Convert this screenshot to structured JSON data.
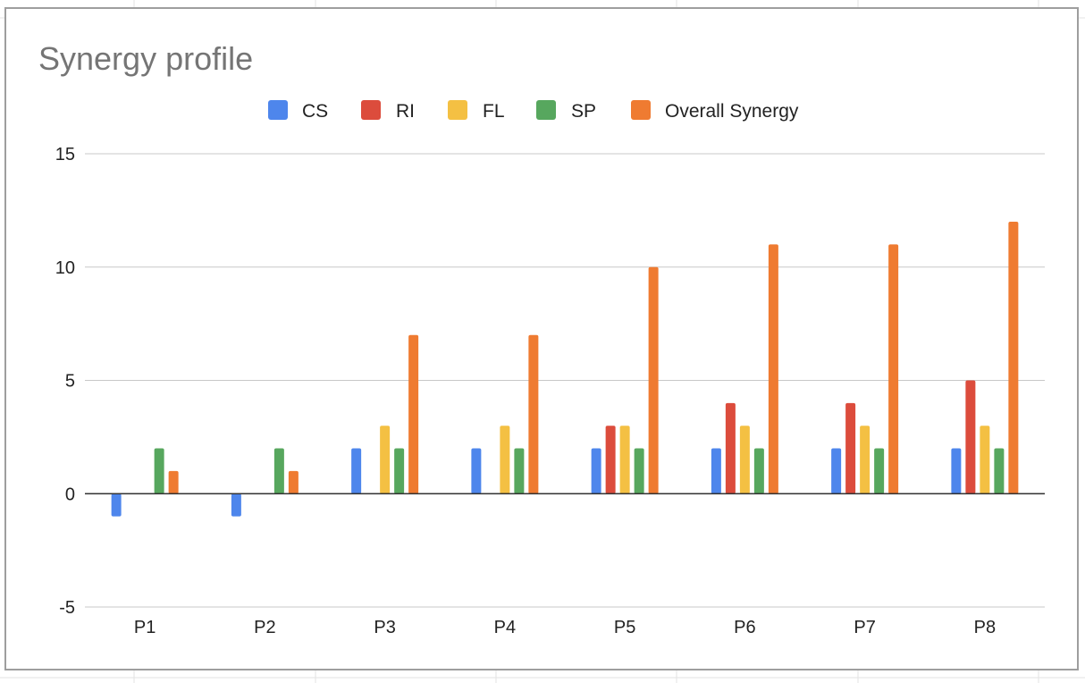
{
  "chart_data": {
    "type": "bar",
    "title": "Synergy profile",
    "xlabel": "",
    "ylabel": "",
    "categories": [
      "P1",
      "P2",
      "P3",
      "P4",
      "P5",
      "P6",
      "P7",
      "P8"
    ],
    "series": [
      {
        "name": "CS",
        "color": "#4e86ec",
        "values": [
          -1,
          -1,
          2,
          2,
          2,
          2,
          2,
          2
        ]
      },
      {
        "name": "RI",
        "color": "#dc4c3c",
        "values": [
          0,
          0,
          0,
          0,
          3,
          4,
          4,
          5
        ]
      },
      {
        "name": "FL",
        "color": "#f4c043",
        "values": [
          0,
          0,
          3,
          3,
          3,
          3,
          3,
          3
        ]
      },
      {
        "name": "SP",
        "color": "#57a75e",
        "values": [
          2,
          2,
          2,
          2,
          2,
          2,
          2,
          2
        ]
      },
      {
        "name": "Overall Synergy",
        "color": "#ef7b31",
        "values": [
          1,
          1,
          7,
          7,
          10,
          11,
          11,
          12
        ]
      }
    ],
    "ylim": [
      -5,
      15
    ],
    "yticks": [
      "-5",
      "0",
      "5",
      "10",
      "15"
    ],
    "grid": true,
    "legend_position": "top-center"
  }
}
